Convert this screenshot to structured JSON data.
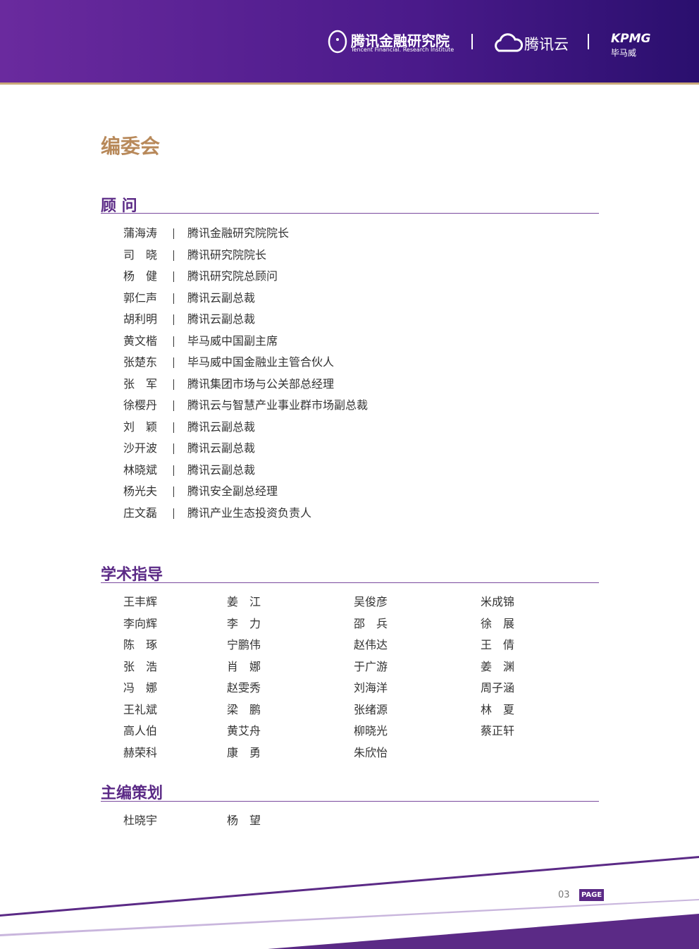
{
  "header": {
    "institute": "腾讯金融研究院",
    "institute_en": "Tencent Financial. Research Institute",
    "cloud": "腾讯云",
    "kpmg": "KPMG",
    "kpmg_cn": "毕马威"
  },
  "title": "编委会",
  "advisors": {
    "heading": "顾 问",
    "rows": [
      [
        "蒲海涛",
        "腾讯金融研究院院长"
      ],
      [
        "司　晓",
        "腾讯研究院院长"
      ],
      [
        "杨　健",
        "腾讯研究院总顾问"
      ],
      [
        "郭仁声",
        "腾讯云副总裁"
      ],
      [
        "胡利明",
        "腾讯云副总裁"
      ],
      [
        "黄文楷",
        "毕马威中国副主席"
      ],
      [
        "张楚东",
        "毕马威中国金融业主管合伙人"
      ],
      [
        "张　军",
        "腾讯集团市场与公关部总经理"
      ],
      [
        "徐樱丹",
        "腾讯云与智慧产业事业群市场副总裁"
      ],
      [
        "刘　颖",
        "腾讯云副总裁"
      ],
      [
        "沙开波",
        "腾讯云副总裁"
      ],
      [
        "林晓斌",
        "腾讯云副总裁"
      ],
      [
        "杨光夫",
        "腾讯安全副总经理"
      ],
      [
        "庄文磊",
        "腾讯产业生态投资负责人"
      ]
    ]
  },
  "academic": {
    "heading": "学术指导",
    "columns": [
      [
        "王丰辉",
        "李向辉",
        "陈　琢",
        "张　浩",
        "冯　娜",
        "王礼斌",
        "高人伯",
        "赫荣科"
      ],
      [
        "姜　江",
        "李　力",
        "宁鹏伟",
        "肖　娜",
        "赵雯秀",
        "梁　鹏",
        "黄艾舟",
        "康　勇"
      ],
      [
        "吴俊彦",
        "邵　兵",
        "赵伟达",
        "于广游",
        "刘海洋",
        "张绪源",
        "柳晓光",
        "朱欣怡"
      ],
      [
        "米成锦",
        "徐　展",
        "王　倩",
        "姜　渊",
        "周子涵",
        "林　夏",
        "蔡正轩"
      ]
    ]
  },
  "editors": {
    "heading": "主编策划",
    "names": [
      "杜晓宇",
      "杨　望"
    ]
  },
  "footer": {
    "page": "03",
    "label": "PAGE"
  }
}
